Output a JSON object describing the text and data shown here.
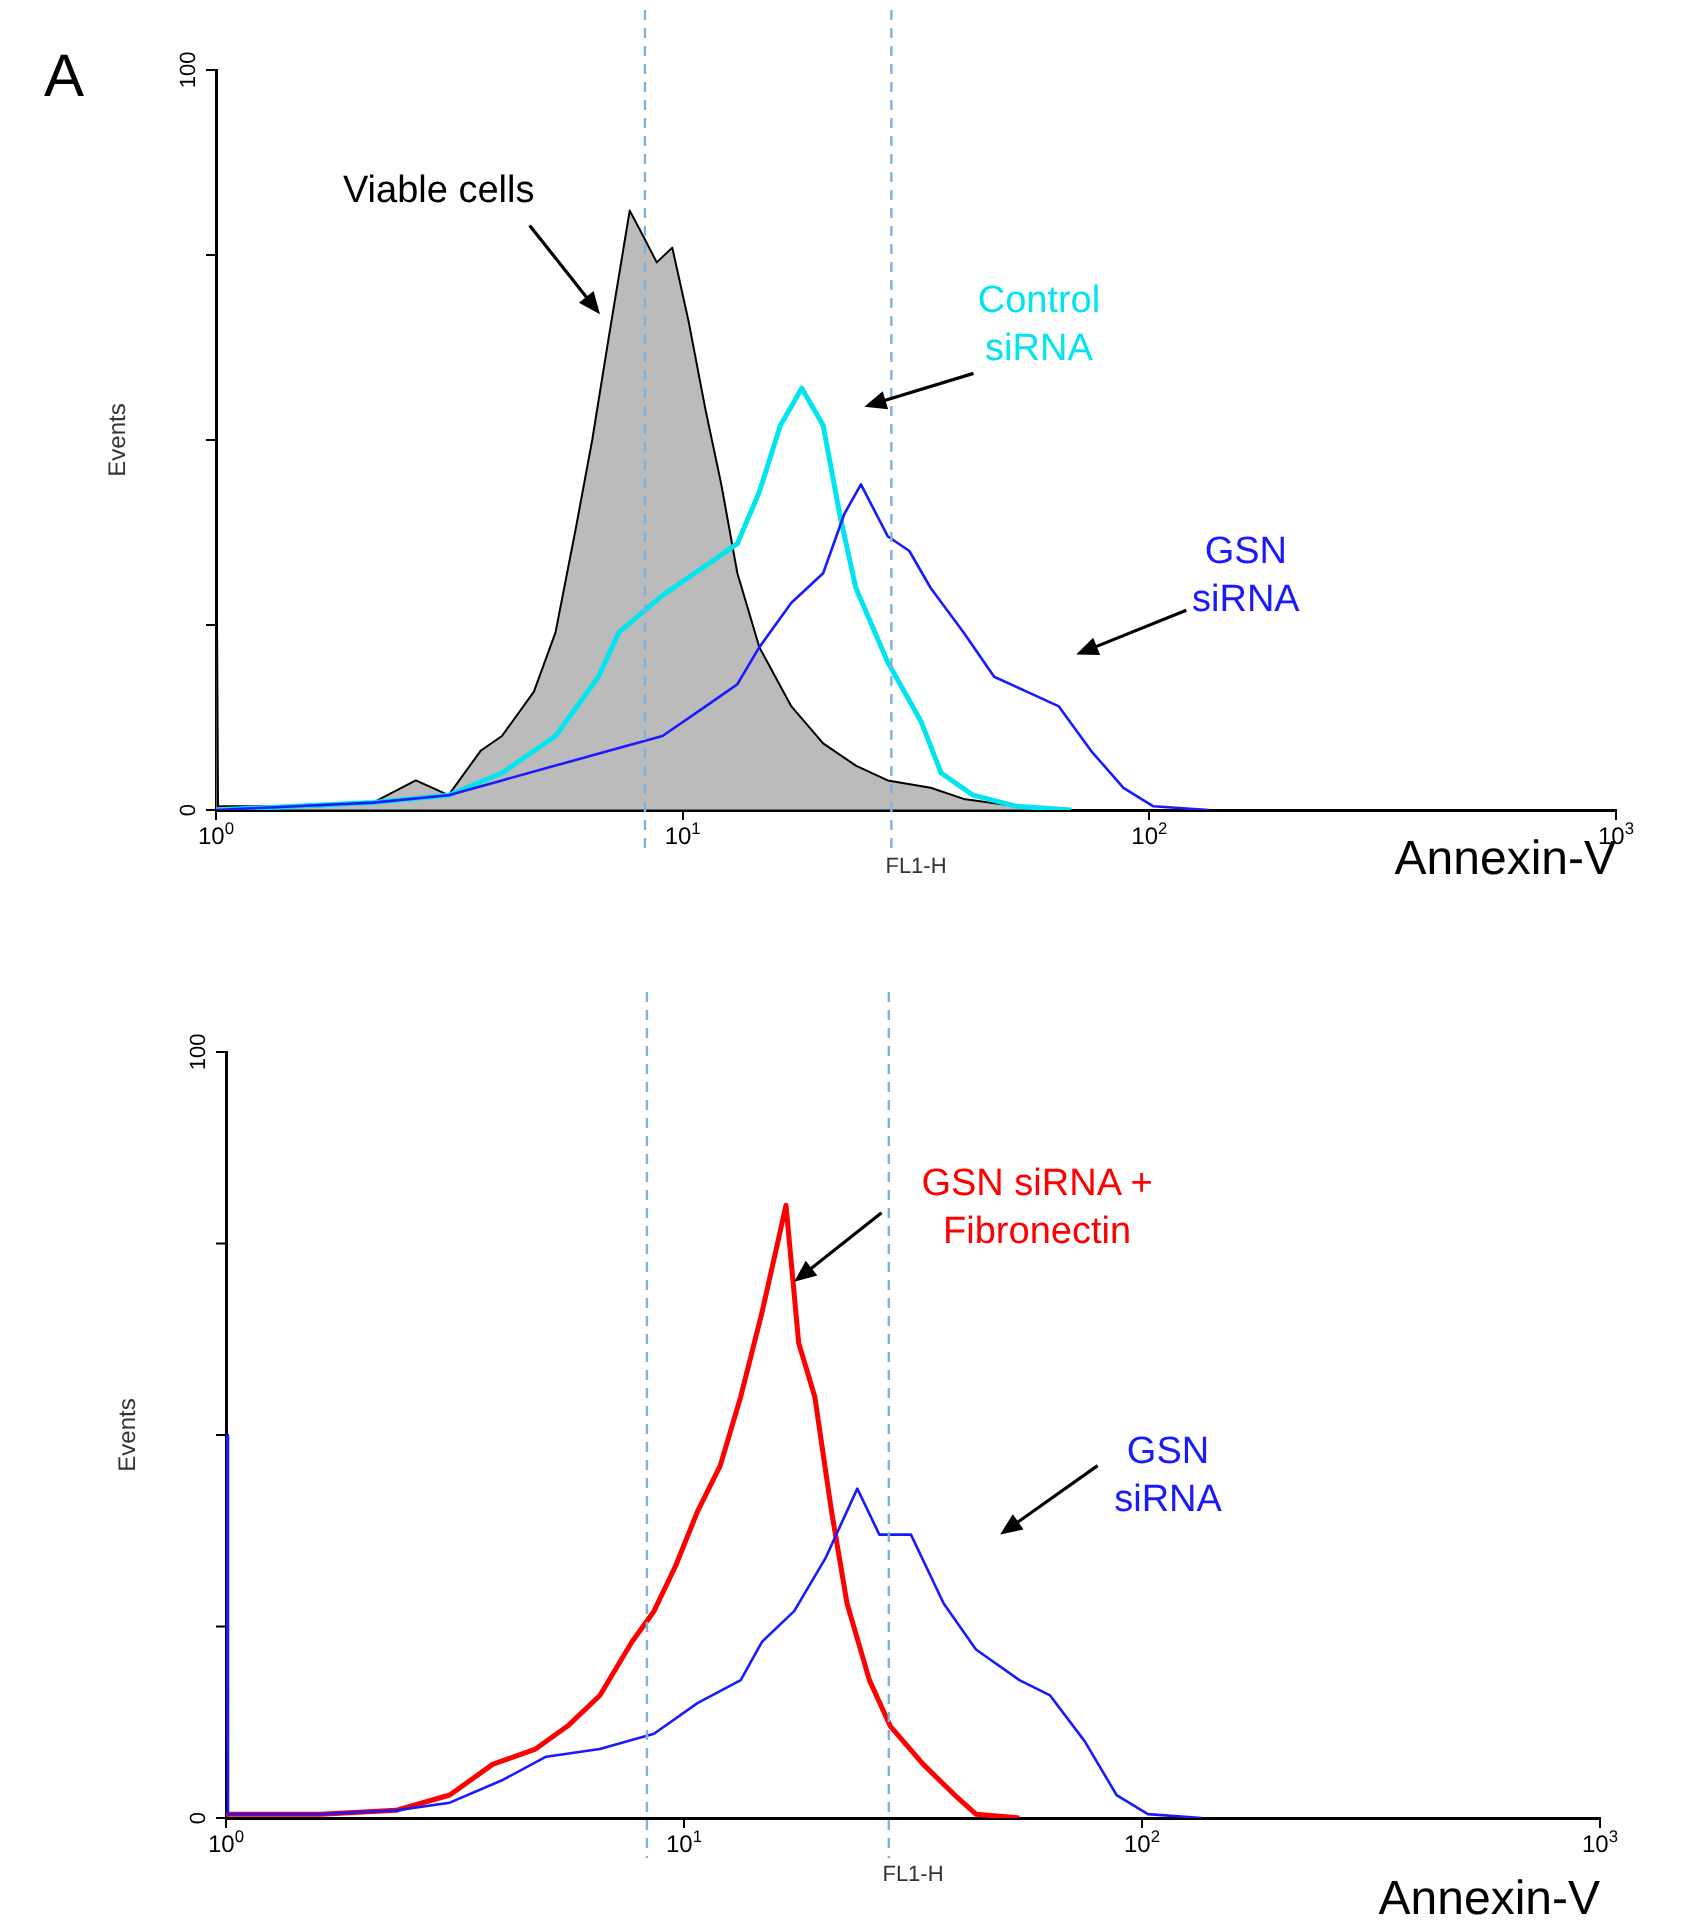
{
  "chart_data": [
    {
      "type": "line",
      "xlabel": "FL1-H",
      "ylabel": "Events",
      "log": "x",
      "xlim": [
        1,
        1000
      ],
      "xticks": [
        {
          "value": 1,
          "label": "10$^{0}$"
        },
        {
          "value": 10,
          "label": "10$^{1}$"
        },
        {
          "value": 100,
          "label": "10$^{2}$"
        },
        {
          "value": 1000,
          "label": "10$^{3}$"
        }
      ],
      "ylim": [
        0,
        100
      ],
      "yticks": [
        {
          "value": 0,
          "label": "0"
        },
        {
          "value": 25,
          "label": null
        },
        {
          "value": 50,
          "label": null
        },
        {
          "value": 75,
          "label": null
        },
        {
          "value": 100,
          "label": "100"
        }
      ],
      "series": [
        {
          "name": "Viable cells",
          "type": "area",
          "color": "#000000",
          "x": [
            1,
            1.01,
            1.67,
            2.17,
            2.68,
            3.15,
            3.69,
            4.1,
            4.8,
            5.34,
            5.9,
            6.4,
            6.95,
            7.7,
            8.16,
            8.8,
            9.5,
            10.3,
            11.2,
            12.1,
            13.1,
            14.6,
            17.1,
            20,
            23.5,
            27.5,
            34,
            40,
            52,
            68
          ],
          "values": [
            50,
            0.5,
            0.5,
            1,
            4,
            2,
            8,
            10,
            16,
            24,
            38,
            50,
            64,
            81,
            78,
            74,
            76,
            66,
            54,
            44,
            32,
            22,
            14,
            9,
            6,
            4,
            3,
            1.5,
            0.5,
            0
          ]
        },
        {
          "name": "Control siRNA",
          "color": "#00e5ee",
          "x": [
            1,
            2.17,
            3.15,
            4.1,
            5.34,
            6.6,
            7.3,
            9.05,
            11.2,
            13.1,
            14.6,
            16.2,
            18,
            20,
            21.7,
            23.5,
            27.5,
            32.4,
            35.8,
            41.9,
            52,
            68
          ],
          "values": [
            0,
            1,
            2,
            5,
            10,
            18,
            24,
            29,
            33,
            36,
            43,
            52,
            57,
            52,
            40,
            30,
            20,
            12,
            5,
            2,
            0.5,
            0
          ]
        },
        {
          "name": "GSN siRNA",
          "color": "#1a1aff",
          "x": [
            1,
            2.17,
            3.15,
            4.1,
            5.34,
            6.95,
            9.05,
            11.2,
            13.1,
            14.6,
            17.1,
            20,
            22.2,
            24.1,
            27.5,
            30.6,
            34,
            40,
            46.5,
            54.6,
            64,
            75,
            88,
            102,
            134
          ],
          "values": [
            0,
            1,
            2,
            4,
            6,
            8,
            10,
            14,
            17,
            22,
            28,
            32,
            40,
            44,
            37,
            35,
            30,
            24,
            18,
            16,
            14,
            8,
            3,
            0.5,
            0
          ]
        }
      ],
      "ref_lines": [
        {
          "axis": "x",
          "value": 8.3,
          "color": "#7fb2dc",
          "line_style": "dashed"
        },
        {
          "axis": "x",
          "value": 28,
          "color": "#7fb2dc",
          "line_style": "dashed"
        }
      ],
      "annotations": [
        "A",
        "Annexin-V"
      ]
    },
    {
      "type": "line",
      "xlabel": "FL1-H",
      "ylabel": "Events",
      "log": "x",
      "xlim": [
        1,
        1000
      ],
      "xticks": [
        {
          "value": 1,
          "label": "10$^{0}$"
        },
        {
          "value": 10,
          "label": "10$^{1}$"
        },
        {
          "value": 100,
          "label": "10$^{2}$"
        },
        {
          "value": 1000,
          "label": "10$^{3}$"
        }
      ],
      "ylim": [
        0,
        100
      ],
      "yticks": [
        0,
        {
          "value": 25,
          "label": null
        },
        {
          "value": 50,
          "label": null
        },
        {
          "value": 75,
          "label": null
        },
        100
      ],
      "series": [
        {
          "name": "GSN siRNA + Fibronectin",
          "color": "#ff0000",
          "x": [
            1,
            1.61,
            2.35,
            3.08,
            3.82,
            4.74,
            5.57,
            6.55,
            7.7,
            8.6,
            9.6,
            10.7,
            12,
            13.3,
            14.8,
            16,
            16.7,
            17.8,
            19.3,
            21,
            22.7,
            25.4,
            28.2,
            33.3,
            39,
            43.4,
            54
          ],
          "values": [
            0.5,
            0.5,
            1,
            3,
            7,
            9,
            12,
            16,
            23,
            27,
            33,
            40,
            46,
            55,
            66,
            75,
            80,
            62,
            55,
            40,
            28,
            18,
            12,
            7,
            3,
            0.5,
            0
          ]
        },
        {
          "name": "GSN siRNA",
          "color": "#1a1aff",
          "x": [
            1,
            1.01,
            1.61,
            2.35,
            3.08,
            4.03,
            5,
            6.55,
            8.6,
            10.7,
            13.3,
            14.8,
            17.4,
            20.4,
            23.9,
            26.7,
            31.3,
            36.9,
            43.4,
            54,
            63,
            75,
            88,
            103,
            135
          ],
          "values": [
            50,
            0.5,
            0.5,
            1,
            2,
            5,
            8,
            9,
            11,
            15,
            18,
            23,
            27,
            34,
            43,
            37,
            37,
            28,
            22,
            18,
            16,
            10,
            3,
            0.5,
            0
          ]
        }
      ],
      "ref_lines": [
        {
          "axis": "x",
          "value": 8.3,
          "color": "#7fb2dc",
          "line_style": "dashed"
        },
        {
          "axis": "x",
          "value": 28,
          "color": "#7fb2dc",
          "line_style": "dashed"
        }
      ],
      "annotations": [
        "Annexin-V"
      ]
    }
  ]
}
